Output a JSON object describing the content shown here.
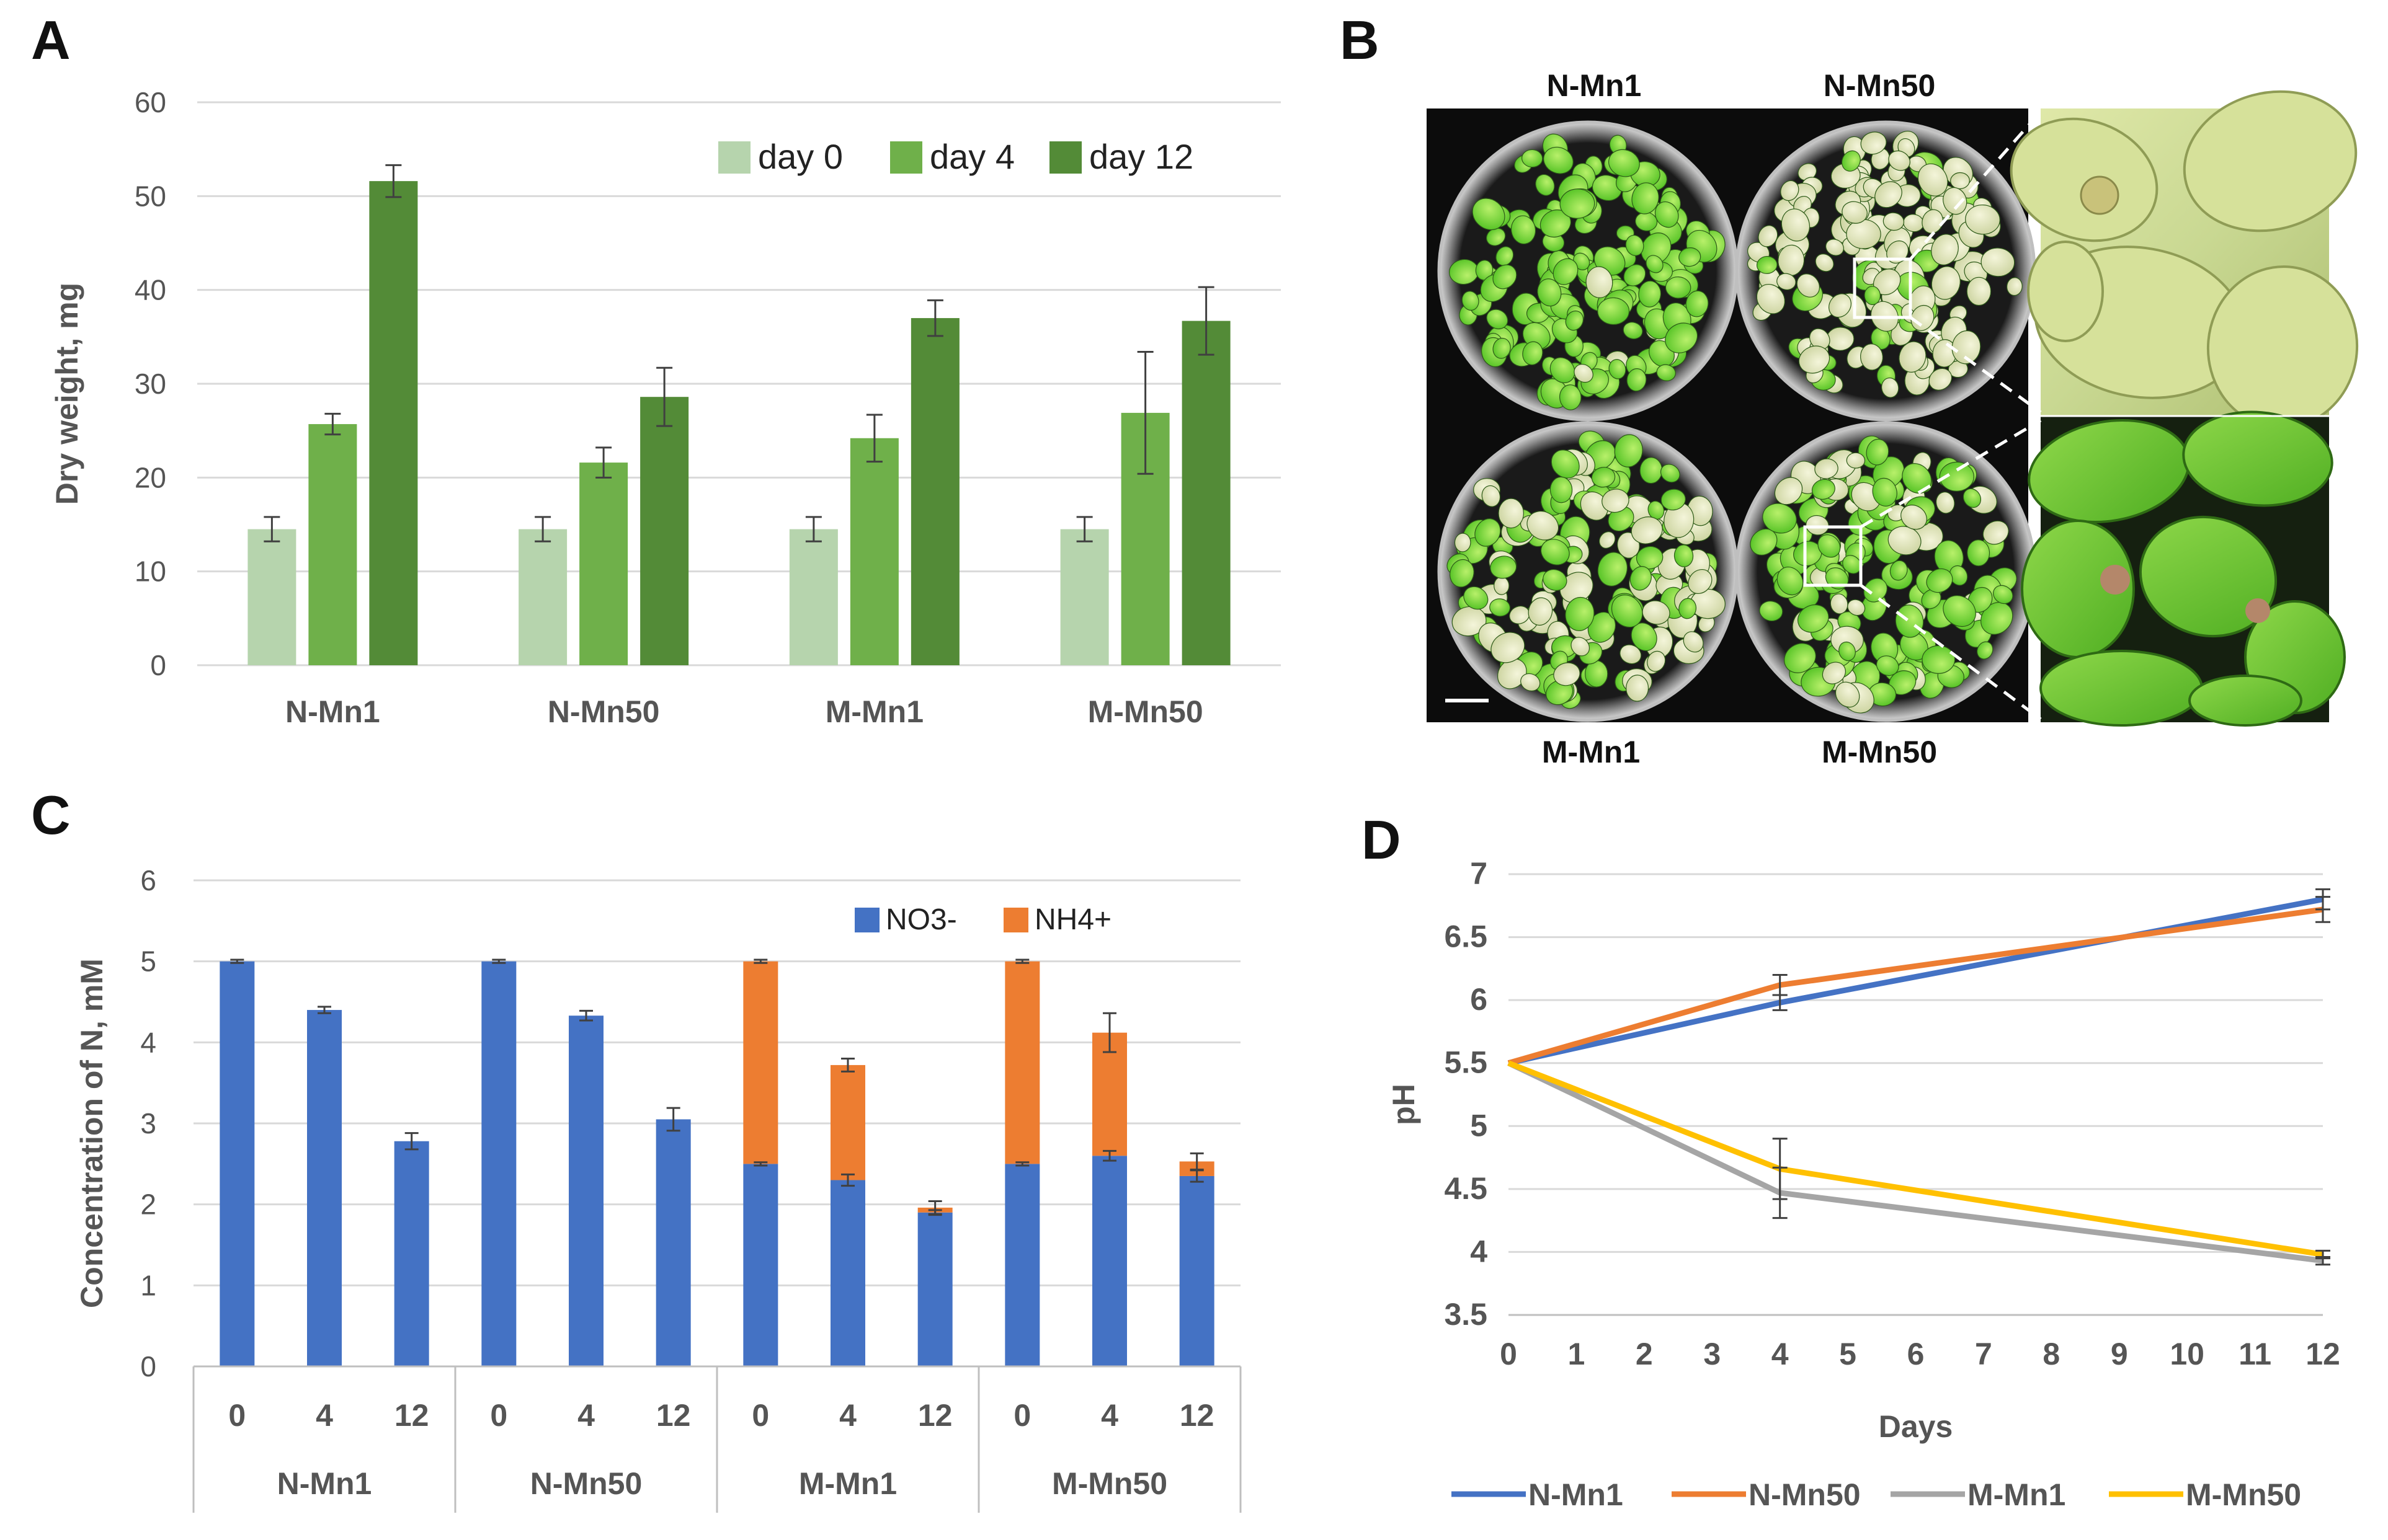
{
  "panels": {
    "A": "A",
    "B": "B",
    "C": "C",
    "D": "D"
  },
  "colors": {
    "day0": "#b6d4ad",
    "day4": "#6fb04a",
    "day12": "#538b37",
    "no3": "#4472c4",
    "nh4": "#ed7d31",
    "n_mn1": "#4472c4",
    "n_mn50": "#ed7d31",
    "m_mn1": "#a5a5a5",
    "m_mn50": "#ffc000",
    "grid": "#d9d9d9"
  },
  "chart_data": [
    {
      "id": "A",
      "type": "bar",
      "ylabel": "Dry weight, mg",
      "xlabel": "",
      "ylim": [
        0,
        60
      ],
      "yticks": [
        "0",
        "10",
        "20",
        "30",
        "40",
        "50",
        "60"
      ],
      "categories": [
        "N-Mn1",
        "N-Mn50",
        "M-Mn1",
        "M-Mn50"
      ],
      "legend_position": "top-right",
      "series": [
        {
          "name": "day 0",
          "values": [
            14.5,
            14.5,
            14.5,
            14.5
          ],
          "errors": [
            1.3,
            1.3,
            1.3,
            1.3
          ]
        },
        {
          "name": "day 4",
          "values": [
            25.7,
            21.6,
            24.2,
            26.9
          ],
          "errors": [
            1.1,
            1.6,
            2.5,
            6.5
          ]
        },
        {
          "name": "day 12",
          "values": [
            51.6,
            28.6,
            37.0,
            36.7
          ],
          "errors": [
            1.7,
            3.1,
            1.9,
            3.6
          ]
        }
      ]
    },
    {
      "id": "B",
      "type": "photo",
      "labels_top": [
        "N-Mn1",
        "N-Mn50"
      ],
      "labels_bottom": [
        "M-Mn1",
        "M-Mn50"
      ]
    },
    {
      "id": "C",
      "type": "bar",
      "stacked": true,
      "ylabel": "Concentration of N, mM",
      "xlabel": "",
      "ylim": [
        0,
        6
      ],
      "yticks": [
        "0",
        "1",
        "2",
        "3",
        "4",
        "5",
        "6"
      ],
      "groups": [
        "N-Mn1",
        "N-Mn50",
        "M-Mn1",
        "M-Mn50"
      ],
      "days": [
        "0",
        "4",
        "12"
      ],
      "legend_position": "top-right",
      "series": [
        {
          "name": "NO3-",
          "values": [
            5.0,
            4.4,
            2.78,
            5.0,
            4.33,
            3.05,
            2.5,
            2.3,
            1.9,
            2.5,
            2.6,
            2.35
          ],
          "errors": [
            0.02,
            0.04,
            0.1,
            0.02,
            0.06,
            0.14,
            0.02,
            0.07,
            0.03,
            0.02,
            0.06,
            0.07
          ]
        },
        {
          "name": "NH4+",
          "values": [
            0,
            0,
            0,
            0,
            0,
            0,
            2.5,
            1.42,
            0.06,
            2.5,
            1.52,
            0.18
          ],
          "errors": [
            0,
            0,
            0,
            0,
            0,
            0,
            0.02,
            0.08,
            0.08,
            0.02,
            0.24,
            0.1
          ]
        }
      ]
    },
    {
      "id": "D",
      "type": "line",
      "ylabel": "pH",
      "xlabel": "Days",
      "ylim": [
        3.5,
        7
      ],
      "xlim": [
        0,
        12
      ],
      "yticks": [
        "3.5",
        "4",
        "4.5",
        "5",
        "5.5",
        "6",
        "6.5",
        "7"
      ],
      "xticks": [
        "0",
        "1",
        "2",
        "3",
        "4",
        "5",
        "6",
        "7",
        "8",
        "9",
        "10",
        "11",
        "12"
      ],
      "x": [
        0,
        4,
        12
      ],
      "legend_position": "bottom",
      "series": [
        {
          "name": "N-Mn1",
          "values": [
            5.5,
            5.98,
            6.8
          ],
          "errors": [
            0,
            0.06,
            0.08
          ]
        },
        {
          "name": "N-Mn50",
          "values": [
            5.5,
            6.12,
            6.72
          ],
          "errors": [
            0,
            0.08,
            0.1
          ]
        },
        {
          "name": "M-Mn1",
          "values": [
            5.5,
            4.47,
            3.93
          ],
          "errors": [
            0,
            0.2,
            0.03
          ]
        },
        {
          "name": "M-Mn50",
          "values": [
            5.5,
            4.66,
            3.98
          ],
          "errors": [
            0,
            0.24,
            0.03
          ]
        }
      ]
    }
  ]
}
